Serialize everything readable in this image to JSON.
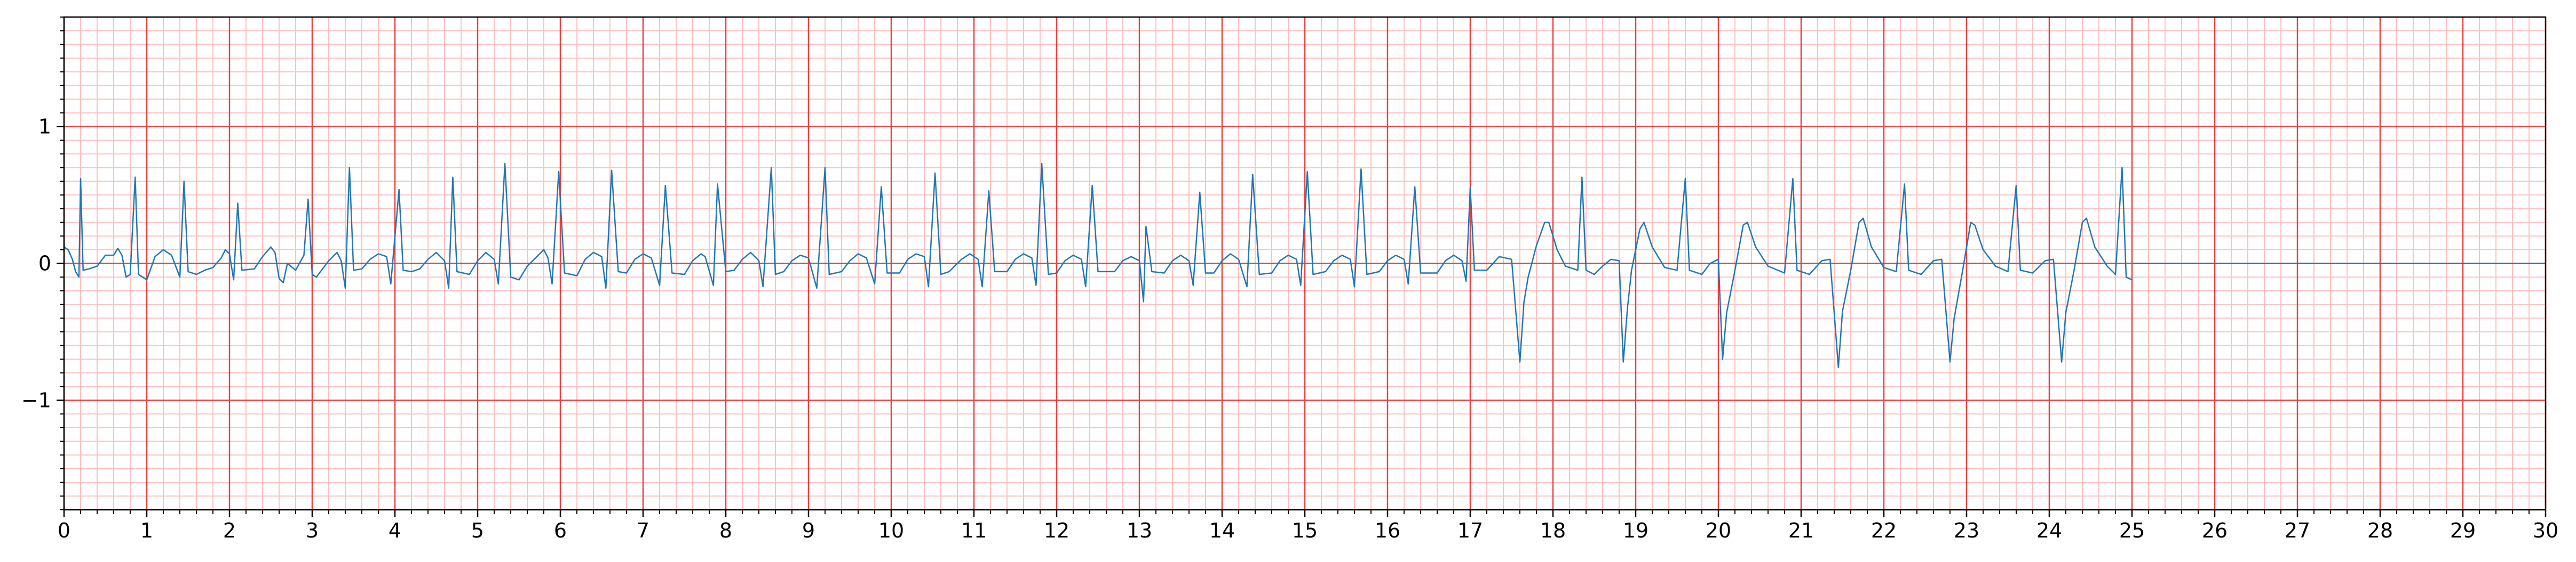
{
  "chart_data": {
    "type": "line",
    "title": "",
    "xlabel": "",
    "ylabel": "",
    "xlim": [
      0,
      30
    ],
    "ylim": [
      -1.8,
      1.8
    ],
    "x_ticks": [
      0,
      1,
      2,
      3,
      4,
      5,
      6,
      7,
      8,
      9,
      10,
      11,
      12,
      13,
      14,
      15,
      16,
      17,
      18,
      19,
      20,
      21,
      22,
      23,
      24,
      25,
      26,
      27,
      28,
      29,
      30
    ],
    "x_tick_labels": [
      "0",
      "1",
      "2",
      "3",
      "4",
      "5",
      "6",
      "7",
      "8",
      "9",
      "10",
      "11",
      "12",
      "13",
      "14",
      "15",
      "16",
      "17",
      "18",
      "19",
      "20",
      "21",
      "22",
      "23",
      "24",
      "25",
      "26",
      "27",
      "28",
      "29",
      "30"
    ],
    "y_ticks": [
      -1,
      0,
      1
    ],
    "y_tick_labels": [
      "−1",
      "0",
      "1"
    ],
    "grid": {
      "major": true,
      "minor": true,
      "major_x_step": 1,
      "major_y_step": 1,
      "minor_x_step": 0.2,
      "minor_y_step": 0.1,
      "major_color": "#e84040",
      "minor_color": "#ffc0c0"
    },
    "line_color": "#1f77b4",
    "baseline": {
      "y": 0,
      "x_from": 25,
      "x_to": 30
    },
    "series": [
      {
        "values": [
          [
            0.0,
            0.12
          ],
          [
            0.05,
            0.1
          ],
          [
            0.1,
            0.03
          ],
          [
            0.14,
            -0.06
          ],
          [
            0.18,
            -0.1
          ],
          [
            0.2,
            0.62
          ],
          [
            0.23,
            -0.05
          ],
          [
            0.3,
            -0.04
          ],
          [
            0.4,
            -0.02
          ],
          [
            0.5,
            0.06
          ],
          [
            0.6,
            0.06
          ],
          [
            0.65,
            0.11
          ],
          [
            0.7,
            0.06
          ],
          [
            0.75,
            -0.1
          ],
          [
            0.8,
            -0.08
          ],
          [
            0.86,
            0.63
          ],
          [
            0.9,
            -0.08
          ],
          [
            0.95,
            -0.1
          ],
          [
            1.0,
            -0.12
          ],
          [
            1.1,
            0.05
          ],
          [
            1.2,
            0.1
          ],
          [
            1.3,
            0.06
          ],
          [
            1.4,
            -0.1
          ],
          [
            1.45,
            0.6
          ],
          [
            1.5,
            -0.06
          ],
          [
            1.6,
            -0.08
          ],
          [
            1.7,
            -0.05
          ],
          [
            1.8,
            -0.03
          ],
          [
            1.9,
            0.04
          ],
          [
            1.95,
            0.1
          ],
          [
            2.0,
            0.07
          ],
          [
            2.05,
            -0.12
          ],
          [
            2.1,
            0.44
          ],
          [
            2.15,
            -0.05
          ],
          [
            2.3,
            -0.04
          ],
          [
            2.4,
            0.05
          ],
          [
            2.5,
            0.12
          ],
          [
            2.55,
            0.08
          ],
          [
            2.6,
            -0.11
          ],
          [
            2.65,
            -0.14
          ],
          [
            2.7,
            0.0
          ],
          [
            2.8,
            -0.05
          ],
          [
            2.9,
            0.06
          ],
          [
            2.95,
            0.47
          ],
          [
            3.0,
            -0.08
          ],
          [
            3.05,
            -0.1
          ],
          [
            3.1,
            -0.06
          ],
          [
            3.2,
            0.02
          ],
          [
            3.3,
            0.08
          ],
          [
            3.35,
            0.02
          ],
          [
            3.4,
            -0.18
          ],
          [
            3.45,
            0.7
          ],
          [
            3.5,
            -0.05
          ],
          [
            3.6,
            -0.04
          ],
          [
            3.7,
            0.03
          ],
          [
            3.8,
            0.07
          ],
          [
            3.9,
            0.05
          ],
          [
            3.95,
            -0.15
          ],
          [
            4.05,
            0.54
          ],
          [
            4.1,
            -0.05
          ],
          [
            4.2,
            -0.06
          ],
          [
            4.3,
            -0.04
          ],
          [
            4.4,
            0.03
          ],
          [
            4.5,
            0.08
          ],
          [
            4.6,
            0.02
          ],
          [
            4.65,
            -0.18
          ],
          [
            4.7,
            0.63
          ],
          [
            4.75,
            -0.06
          ],
          [
            4.9,
            -0.08
          ],
          [
            5.0,
            0.02
          ],
          [
            5.1,
            0.08
          ],
          [
            5.2,
            0.03
          ],
          [
            5.25,
            -0.15
          ],
          [
            5.33,
            0.73
          ],
          [
            5.4,
            -0.1
          ],
          [
            5.5,
            -0.12
          ],
          [
            5.6,
            -0.02
          ],
          [
            5.7,
            0.04
          ],
          [
            5.8,
            0.1
          ],
          [
            5.85,
            0.04
          ],
          [
            5.9,
            -0.15
          ],
          [
            5.98,
            0.67
          ],
          [
            6.05,
            -0.07
          ],
          [
            6.2,
            -0.09
          ],
          [
            6.3,
            0.03
          ],
          [
            6.4,
            0.08
          ],
          [
            6.5,
            0.05
          ],
          [
            6.55,
            -0.18
          ],
          [
            6.62,
            0.68
          ],
          [
            6.7,
            -0.06
          ],
          [
            6.8,
            -0.07
          ],
          [
            6.9,
            0.03
          ],
          [
            7.0,
            0.07
          ],
          [
            7.1,
            0.04
          ],
          [
            7.2,
            -0.16
          ],
          [
            7.27,
            0.57
          ],
          [
            7.35,
            -0.07
          ],
          [
            7.5,
            -0.08
          ],
          [
            7.6,
            0.02
          ],
          [
            7.7,
            0.07
          ],
          [
            7.75,
            0.05
          ],
          [
            7.85,
            -0.16
          ],
          [
            7.9,
            0.58
          ],
          [
            8.0,
            -0.06
          ],
          [
            8.1,
            -0.05
          ],
          [
            8.2,
            0.03
          ],
          [
            8.3,
            0.08
          ],
          [
            8.4,
            0.02
          ],
          [
            8.45,
            -0.17
          ],
          [
            8.55,
            0.7
          ],
          [
            8.6,
            -0.08
          ],
          [
            8.7,
            -0.06
          ],
          [
            8.8,
            0.02
          ],
          [
            8.9,
            0.06
          ],
          [
            9.0,
            0.04
          ],
          [
            9.1,
            -0.18
          ],
          [
            9.2,
            0.7
          ],
          [
            9.25,
            -0.08
          ],
          [
            9.4,
            -0.06
          ],
          [
            9.5,
            0.02
          ],
          [
            9.6,
            0.07
          ],
          [
            9.7,
            0.04
          ],
          [
            9.8,
            -0.15
          ],
          [
            9.88,
            0.56
          ],
          [
            9.95,
            -0.07
          ],
          [
            10.1,
            -0.07
          ],
          [
            10.2,
            0.03
          ],
          [
            10.3,
            0.07
          ],
          [
            10.4,
            0.05
          ],
          [
            10.45,
            -0.17
          ],
          [
            10.53,
            0.66
          ],
          [
            10.6,
            -0.08
          ],
          [
            10.7,
            -0.06
          ],
          [
            10.85,
            0.03
          ],
          [
            10.95,
            0.07
          ],
          [
            11.05,
            0.03
          ],
          [
            11.1,
            -0.17
          ],
          [
            11.18,
            0.53
          ],
          [
            11.25,
            -0.06
          ],
          [
            11.4,
            -0.06
          ],
          [
            11.5,
            0.03
          ],
          [
            11.6,
            0.07
          ],
          [
            11.7,
            0.04
          ],
          [
            11.75,
            -0.16
          ],
          [
            11.82,
            0.73
          ],
          [
            11.9,
            -0.08
          ],
          [
            12.0,
            -0.07
          ],
          [
            12.1,
            0.02
          ],
          [
            12.2,
            0.06
          ],
          [
            12.3,
            0.03
          ],
          [
            12.35,
            -0.17
          ],
          [
            12.43,
            0.57
          ],
          [
            12.5,
            -0.06
          ],
          [
            12.7,
            -0.06
          ],
          [
            12.8,
            0.02
          ],
          [
            12.9,
            0.05
          ],
          [
            13.0,
            0.02
          ],
          [
            13.05,
            -0.28
          ],
          [
            13.08,
            0.27
          ],
          [
            13.15,
            -0.06
          ],
          [
            13.3,
            -0.07
          ],
          [
            13.4,
            0.02
          ],
          [
            13.5,
            0.06
          ],
          [
            13.6,
            0.02
          ],
          [
            13.65,
            -0.16
          ],
          [
            13.73,
            0.52
          ],
          [
            13.8,
            -0.07
          ],
          [
            13.9,
            -0.07
          ],
          [
            14.0,
            0.02
          ],
          [
            14.1,
            0.07
          ],
          [
            14.2,
            0.03
          ],
          [
            14.3,
            -0.17
          ],
          [
            14.37,
            0.65
          ],
          [
            14.45,
            -0.08
          ],
          [
            14.6,
            -0.07
          ],
          [
            14.7,
            0.02
          ],
          [
            14.8,
            0.06
          ],
          [
            14.9,
            0.03
          ],
          [
            14.95,
            -0.16
          ],
          [
            15.03,
            0.67
          ],
          [
            15.1,
            -0.08
          ],
          [
            15.25,
            -0.06
          ],
          [
            15.35,
            0.02
          ],
          [
            15.45,
            0.06
          ],
          [
            15.55,
            0.03
          ],
          [
            15.6,
            -0.17
          ],
          [
            15.68,
            0.69
          ],
          [
            15.75,
            -0.08
          ],
          [
            15.9,
            -0.06
          ],
          [
            16.0,
            0.02
          ],
          [
            16.1,
            0.06
          ],
          [
            16.2,
            0.03
          ],
          [
            16.25,
            -0.15
          ],
          [
            16.33,
            0.56
          ],
          [
            16.4,
            -0.07
          ],
          [
            16.6,
            -0.07
          ],
          [
            16.7,
            0.02
          ],
          [
            16.8,
            0.06
          ],
          [
            16.9,
            0.02
          ],
          [
            16.95,
            -0.13
          ],
          [
            17.0,
            0.55
          ],
          [
            17.05,
            -0.05
          ],
          [
            17.2,
            -0.05
          ],
          [
            17.35,
            0.05
          ],
          [
            17.5,
            0.03
          ],
          [
            17.6,
            -0.72
          ],
          [
            17.65,
            -0.28
          ],
          [
            17.7,
            -0.1
          ],
          [
            17.8,
            0.13
          ],
          [
            17.9,
            0.3
          ],
          [
            17.95,
            0.3
          ],
          [
            18.05,
            0.1
          ],
          [
            18.15,
            -0.02
          ],
          [
            18.3,
            -0.05
          ],
          [
            18.35,
            0.63
          ],
          [
            18.4,
            -0.05
          ],
          [
            18.5,
            -0.08
          ],
          [
            18.6,
            -0.02
          ],
          [
            18.7,
            0.03
          ],
          [
            18.8,
            0.02
          ],
          [
            18.85,
            -0.72
          ],
          [
            18.9,
            -0.33
          ],
          [
            18.95,
            -0.05
          ],
          [
            19.05,
            0.25
          ],
          [
            19.1,
            0.3
          ],
          [
            19.2,
            0.12
          ],
          [
            19.35,
            -0.03
          ],
          [
            19.5,
            -0.05
          ],
          [
            19.6,
            0.62
          ],
          [
            19.65,
            -0.05
          ],
          [
            19.8,
            -0.08
          ],
          [
            19.9,
            0.0
          ],
          [
            20.0,
            0.03
          ],
          [
            20.05,
            -0.7
          ],
          [
            20.1,
            -0.36
          ],
          [
            20.2,
            -0.05
          ],
          [
            20.3,
            0.28
          ],
          [
            20.35,
            0.3
          ],
          [
            20.45,
            0.12
          ],
          [
            20.6,
            -0.02
          ],
          [
            20.8,
            -0.07
          ],
          [
            20.9,
            0.62
          ],
          [
            20.95,
            -0.05
          ],
          [
            21.1,
            -0.08
          ],
          [
            21.25,
            0.02
          ],
          [
            21.35,
            0.03
          ],
          [
            21.45,
            -0.76
          ],
          [
            21.5,
            -0.35
          ],
          [
            21.6,
            -0.05
          ],
          [
            21.7,
            0.3
          ],
          [
            21.75,
            0.33
          ],
          [
            21.85,
            0.12
          ],
          [
            22.0,
            -0.03
          ],
          [
            22.15,
            -0.06
          ],
          [
            22.25,
            0.58
          ],
          [
            22.3,
            -0.05
          ],
          [
            22.45,
            -0.08
          ],
          [
            22.6,
            0.02
          ],
          [
            22.7,
            0.03
          ],
          [
            22.8,
            -0.72
          ],
          [
            22.85,
            -0.4
          ],
          [
            22.95,
            -0.06
          ],
          [
            23.05,
            0.3
          ],
          [
            23.1,
            0.28
          ],
          [
            23.2,
            0.1
          ],
          [
            23.35,
            -0.02
          ],
          [
            23.5,
            -0.06
          ],
          [
            23.6,
            0.57
          ],
          [
            23.65,
            -0.05
          ],
          [
            23.8,
            -0.07
          ],
          [
            23.95,
            0.02
          ],
          [
            24.05,
            0.03
          ],
          [
            24.15,
            -0.72
          ],
          [
            24.2,
            -0.36
          ],
          [
            24.3,
            -0.05
          ],
          [
            24.4,
            0.3
          ],
          [
            24.45,
            0.33
          ],
          [
            24.55,
            0.12
          ],
          [
            24.7,
            -0.02
          ],
          [
            24.8,
            -0.08
          ],
          [
            24.88,
            0.7
          ],
          [
            24.93,
            -0.1
          ],
          [
            25.0,
            -0.12
          ]
        ]
      }
    ]
  }
}
